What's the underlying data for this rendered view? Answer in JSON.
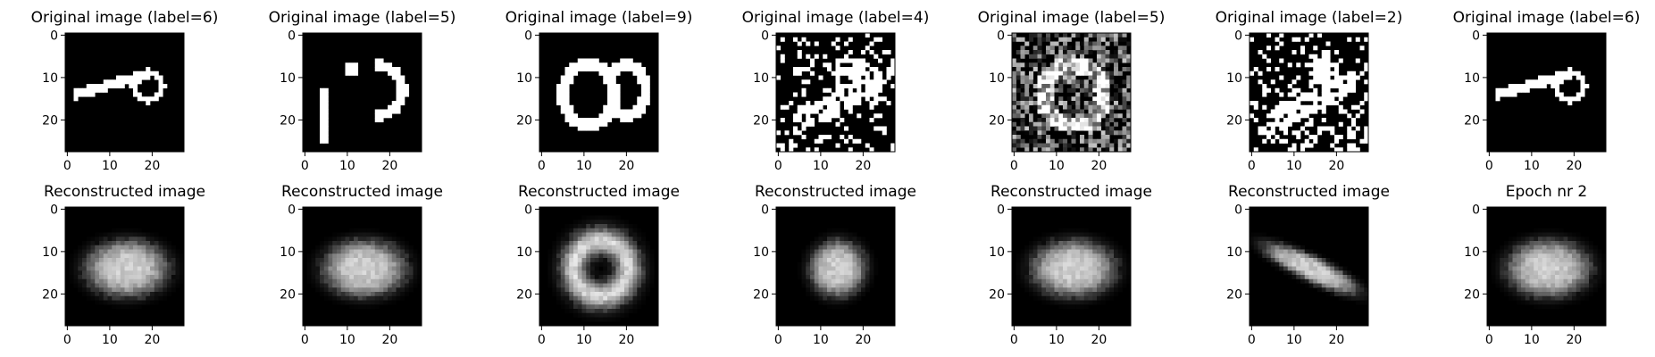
{
  "chart_data": {
    "type": "heatmap",
    "colormap": "gray",
    "grid": false,
    "panels": [
      {
        "row": 0,
        "col": 0,
        "title": "Original image (label=6)",
        "kind": "stroke"
      },
      {
        "row": 0,
        "col": 1,
        "title": "Original image (label=5)",
        "kind": "pieces"
      },
      {
        "row": 0,
        "col": 2,
        "title": "Original image (label=9)",
        "kind": "ring"
      },
      {
        "row": 0,
        "col": 3,
        "title": "Original image (label=4)",
        "kind": "noisy-sparse"
      },
      {
        "row": 0,
        "col": 4,
        "title": "Original image (label=5)",
        "kind": "noisy-dense"
      },
      {
        "row": 0,
        "col": 5,
        "title": "Original image (label=2)",
        "kind": "noisy-sparse"
      },
      {
        "row": 0,
        "col": 6,
        "title": "Original image (label=6)",
        "kind": "stroke"
      },
      {
        "row": 1,
        "col": 0,
        "title": "Reconstructed image",
        "kind": "blob"
      },
      {
        "row": 1,
        "col": 1,
        "title": "Reconstructed image",
        "kind": "blob"
      },
      {
        "row": 1,
        "col": 2,
        "title": "Reconstructed image",
        "kind": "blob-ring"
      },
      {
        "row": 1,
        "col": 3,
        "title": "Reconstructed image",
        "kind": "blob-tilt"
      },
      {
        "row": 1,
        "col": 4,
        "title": "Reconstructed image",
        "kind": "blob"
      },
      {
        "row": 1,
        "col": 5,
        "title": "Reconstructed image",
        "kind": "blob-stroke"
      },
      {
        "row": 1,
        "col": 6,
        "title": "Epoch nr 2",
        "kind": "blob"
      }
    ],
    "image_size": [
      28,
      28
    ],
    "x_ticks": [
      0,
      10,
      20
    ],
    "y_ticks": [
      0,
      10,
      20
    ],
    "xlim": [
      -0.5,
      27.5
    ],
    "ylim": [
      27.5,
      -0.5
    ]
  }
}
